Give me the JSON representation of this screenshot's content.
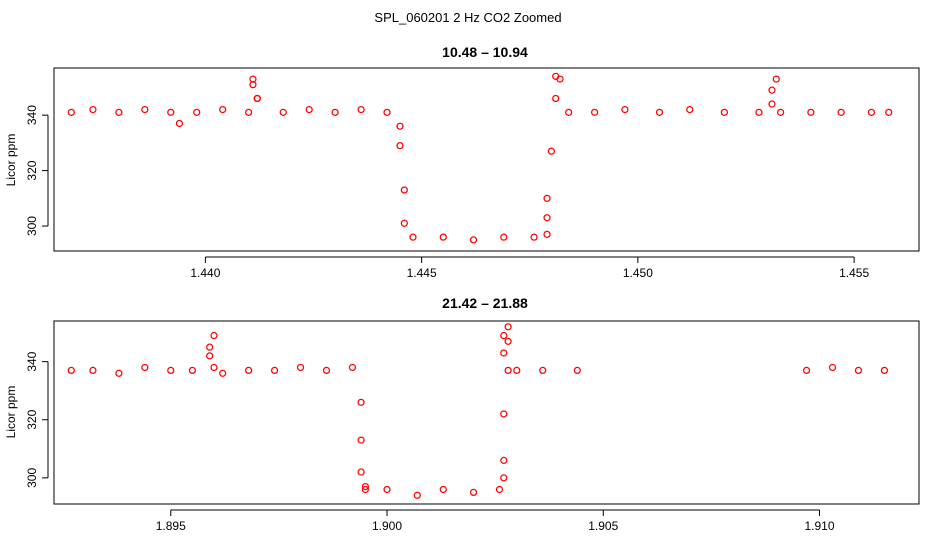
{
  "figure": {
    "title": "SPL_060201  2 Hz CO2 Zoomed"
  },
  "chart_data": [
    {
      "type": "scatter",
      "title": "10.48 – 10.94",
      "xlabel": "",
      "ylabel": "Licor ppm",
      "xlim": [
        1.4365,
        1.4565
      ],
      "ylim": [
        291,
        357
      ],
      "xticks": [
        1.44,
        1.445,
        1.45,
        1.455
      ],
      "xtick_labels": [
        "1.440",
        "1.445",
        "1.450",
        "1.455"
      ],
      "yticks": [
        300,
        320,
        340
      ],
      "ytick_labels": [
        "300",
        "320",
        "340"
      ],
      "grid": false,
      "marker": "open-circle",
      "color": "#ff0000",
      "series": [
        {
          "x": [
            1.4369,
            1.4374,
            1.438,
            1.4386,
            1.4392,
            1.4394,
            1.4398,
            1.4404,
            1.441,
            1.4411,
            1.4411,
            1.4412,
            1.4412,
            1.4418,
            1.4424,
            1.443,
            1.4436,
            1.4442,
            1.4445,
            1.4445,
            1.4446,
            1.4446,
            1.4448,
            1.4455,
            1.4462,
            1.4469,
            1.4476,
            1.4479,
            1.4479,
            1.4479,
            1.448,
            1.4481,
            1.4481,
            1.4482,
            1.4484,
            1.449,
            1.4497,
            1.4505,
            1.4512,
            1.452,
            1.4528,
            1.4531,
            1.4531,
            1.4532,
            1.4533,
            1.454,
            1.4547,
            1.4554,
            1.4558
          ],
          "y": [
            341,
            342,
            341,
            342,
            341,
            337,
            341,
            342,
            341,
            353,
            351,
            346,
            346,
            341,
            342,
            341,
            342,
            341,
            336,
            329,
            313,
            301,
            296,
            296,
            295,
            296,
            296,
            297,
            303,
            310,
            327,
            346,
            354,
            353,
            341,
            341,
            342,
            341,
            342,
            341,
            341,
            344,
            349,
            353,
            341,
            341,
            341,
            341,
            341
          ]
        }
      ]
    },
    {
      "type": "scatter",
      "title": "21.42 – 21.88",
      "xlabel": "",
      "ylabel": "Licor ppm",
      "xlim": [
        1.8923,
        1.9123
      ],
      "ylim": [
        291,
        354
      ],
      "xticks": [
        1.895,
        1.9,
        1.905,
        1.91
      ],
      "xtick_labels": [
        "1.895",
        "1.900",
        "1.905",
        "1.910"
      ],
      "yticks": [
        300,
        320,
        340
      ],
      "ytick_labels": [
        "300",
        "320",
        "340"
      ],
      "grid": false,
      "marker": "open-circle",
      "color": "#ff0000",
      "series": [
        {
          "x": [
            1.8927,
            1.8932,
            1.8938,
            1.8944,
            1.895,
            1.8955,
            1.8959,
            1.8959,
            1.896,
            1.896,
            1.8962,
            1.8968,
            1.8974,
            1.898,
            1.8986,
            1.8992,
            1.8994,
            1.8994,
            1.8994,
            1.8995,
            1.8995,
            1.9,
            1.9007,
            1.9013,
            1.902,
            1.9026,
            1.9027,
            1.9027,
            1.9027,
            1.9027,
            1.9027,
            1.9028,
            1.9028,
            1.9028,
            1.903,
            1.9036,
            1.9044,
            1.9097,
            1.9103,
            1.9109,
            1.9115
          ],
          "y": [
            337,
            337,
            336,
            338,
            337,
            337,
            342,
            345,
            349,
            338,
            336,
            337,
            337,
            338,
            337,
            338,
            326,
            313,
            302,
            297,
            296,
            296,
            294,
            296,
            295,
            296,
            300,
            306,
            322,
            343,
            349,
            352,
            347,
            337,
            337,
            337,
            337,
            337,
            338,
            337,
            337
          ]
        }
      ]
    }
  ]
}
